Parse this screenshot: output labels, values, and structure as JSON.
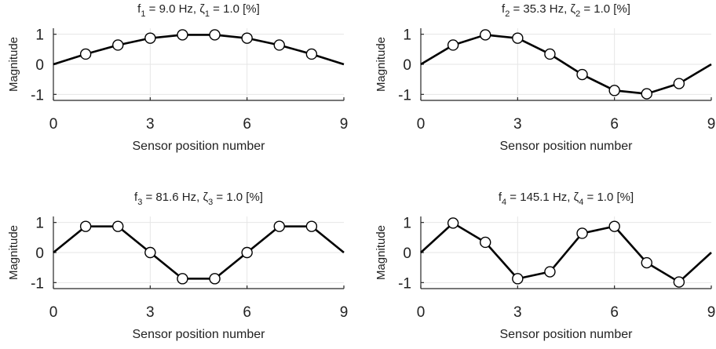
{
  "chart_data": [
    {
      "type": "line",
      "title": {
        "f": "f",
        "f_sub": "1",
        "f_val": " = 9.0 Hz, ",
        "z": "ζ",
        "z_sub": "1",
        "z_val": " = 1.0 [%]"
      },
      "xlabel": "Sensor position number",
      "ylabel": "Magnitude",
      "xlim": [
        0,
        9
      ],
      "ylim": [
        -1.2,
        1.2
      ],
      "xticks": [
        0,
        3,
        6,
        9
      ],
      "xtick_labels": [
        "0",
        "3",
        "6",
        "9"
      ],
      "yticks": [
        1,
        0,
        -1
      ],
      "ytick_labels": [
        "1",
        "0",
        "-1"
      ],
      "grid": true,
      "x": [
        0,
        1,
        2,
        3,
        4,
        5,
        6,
        7,
        8,
        9
      ],
      "y": [
        0,
        0.34,
        0.64,
        0.87,
        0.98,
        0.98,
        0.87,
        0.64,
        0.34,
        0
      ],
      "markers_x": [
        1,
        2,
        3,
        4,
        5,
        6,
        7,
        8
      ]
    },
    {
      "type": "line",
      "title": {
        "f": "f",
        "f_sub": "2",
        "f_val": " = 35.3 Hz, ",
        "z": "ζ",
        "z_sub": "2",
        "z_val": " = 1.0 [%]"
      },
      "xlabel": "Sensor position number",
      "ylabel": "Magnitude",
      "xlim": [
        0,
        9
      ],
      "ylim": [
        -1.2,
        1.2
      ],
      "xticks": [
        0,
        3,
        6,
        9
      ],
      "xtick_labels": [
        "0",
        "3",
        "6",
        "9"
      ],
      "yticks": [
        1,
        0,
        -1
      ],
      "ytick_labels": [
        "1",
        "0",
        "-1"
      ],
      "grid": true,
      "x": [
        0,
        1,
        2,
        3,
        4,
        5,
        6,
        7,
        8,
        9
      ],
      "y": [
        0,
        0.64,
        0.98,
        0.87,
        0.34,
        -0.34,
        -0.87,
        -0.98,
        -0.64,
        0
      ],
      "markers_x": [
        1,
        2,
        3,
        4,
        5,
        6,
        7,
        8
      ]
    },
    {
      "type": "line",
      "title": {
        "f": "f",
        "f_sub": "3",
        "f_val": " = 81.6 Hz, ",
        "z": "ζ",
        "z_sub": "3",
        "z_val": " = 1.0 [%]"
      },
      "xlabel": "Sensor position number",
      "ylabel": "Magnitude",
      "xlim": [
        0,
        9
      ],
      "ylim": [
        -1.2,
        1.2
      ],
      "xticks": [
        0,
        3,
        6,
        9
      ],
      "xtick_labels": [
        "0",
        "3",
        "6",
        "9"
      ],
      "yticks": [
        1,
        0,
        -1
      ],
      "ytick_labels": [
        "1",
        "0",
        "-1"
      ],
      "grid": true,
      "x": [
        0,
        1,
        2,
        3,
        4,
        5,
        6,
        7,
        8,
        9
      ],
      "y": [
        0,
        0.87,
        0.87,
        0,
        -0.87,
        -0.87,
        0,
        0.87,
        0.87,
        0
      ],
      "markers_x": [
        1,
        2,
        3,
        4,
        5,
        6,
        7,
        8
      ]
    },
    {
      "type": "line",
      "title": {
        "f": "f",
        "f_sub": "4",
        "f_val": " = 145.1 Hz, ",
        "z": "ζ",
        "z_sub": "4",
        "z_val": " = 1.0 [%]"
      },
      "xlabel": "Sensor position number",
      "ylabel": "Magnitude",
      "xlim": [
        0,
        9
      ],
      "ylim": [
        -1.2,
        1.2
      ],
      "xticks": [
        0,
        3,
        6,
        9
      ],
      "xtick_labels": [
        "0",
        "3",
        "6",
        "9"
      ],
      "yticks": [
        1,
        0,
        -1
      ],
      "ytick_labels": [
        "1",
        "0",
        "-1"
      ],
      "grid": true,
      "x": [
        0,
        1,
        2,
        3,
        4,
        5,
        6,
        7,
        8,
        9
      ],
      "y": [
        0,
        0.98,
        0.34,
        -0.87,
        -0.64,
        0.64,
        0.87,
        -0.34,
        -0.98,
        0
      ],
      "markers_x": [
        1,
        2,
        3,
        4,
        5,
        6,
        7,
        8
      ]
    }
  ],
  "colors": {
    "line": "#000000",
    "marker_fill": "#ffffff",
    "grid": "#e6e6e6",
    "axes": "#262626"
  }
}
